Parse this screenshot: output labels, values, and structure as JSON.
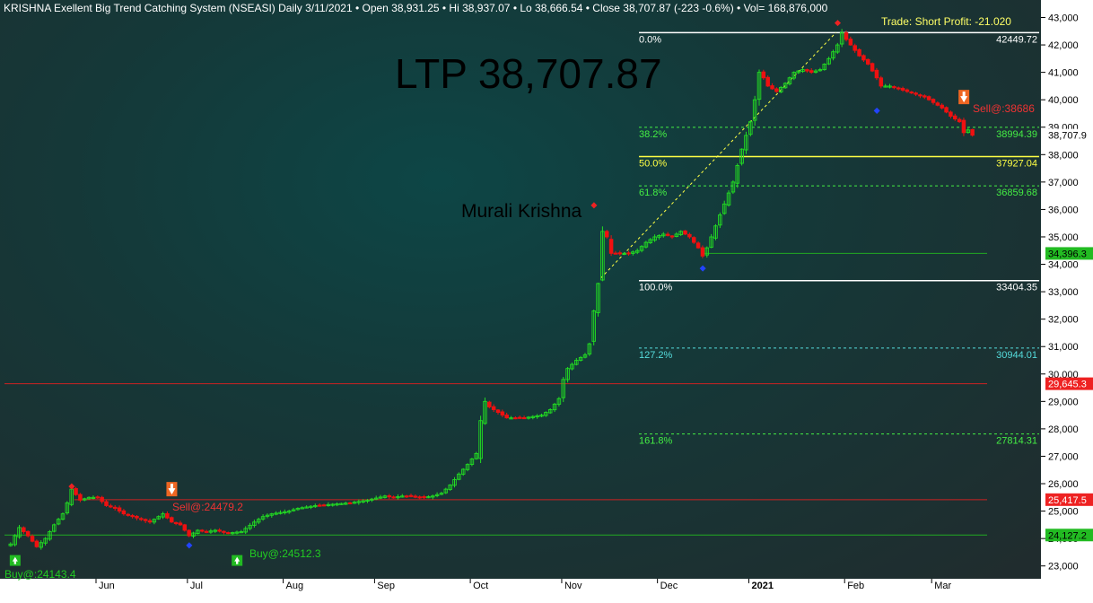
{
  "header": {
    "title": "KRISHNA Exellent Big Trend Catching System (NSEASI) Daily  3/11/2021  •  Open 38,931.25  •  Hi 38,937.07  •  Lo 38,666.54  •  Close 38,707.87 (-223 -0.6%)  •  Vol= 168,876,000"
  },
  "annotations": {
    "ltp": "LTP 38,707.87",
    "author": "Murali Krishna",
    "trade": "Trade: Short Profit: -21.020",
    "buy1": "Buy@:24143.4",
    "sell1": "Sell@:24479.2",
    "buy2": "Buy@:24512.3",
    "sell2": "Sell@:38686"
  },
  "colors": {
    "up": "#22dd22",
    "down": "#ee1111",
    "axis_bg": "#ffffff",
    "fib_main": "#ffffff",
    "fib_382": "#44ee44",
    "fib_50": "#ffff44",
    "fib_618": "#44ee44",
    "fib_1272": "#55dddd",
    "fib_1618": "#44ee44",
    "resist": "#cc2222",
    "support": "#22aa22"
  },
  "chart_data": {
    "type": "candlestick",
    "ylim": [
      22700,
      43300
    ],
    "y_ticks": [
      {
        "v": 23000,
        "label": "23,000"
      },
      {
        "v": 24000,
        "label": "24,000"
      },
      {
        "v": 25000,
        "label": "25,000"
      },
      {
        "v": 26000,
        "label": "26,000"
      },
      {
        "v": 27000,
        "label": "27,000"
      },
      {
        "v": 28000,
        "label": "28,000"
      },
      {
        "v": 29000,
        "label": "29,000"
      },
      {
        "v": 30000,
        "label": "30,000"
      },
      {
        "v": 31000,
        "label": "31,000"
      },
      {
        "v": 32000,
        "label": "32,000"
      },
      {
        "v": 33000,
        "label": "33,000"
      },
      {
        "v": 34000,
        "label": "34,000"
      },
      {
        "v": 35000,
        "label": "35,000"
      },
      {
        "v": 36000,
        "label": "36,000"
      },
      {
        "v": 37000,
        "label": "37,000"
      },
      {
        "v": 38000,
        "label": "38,000"
      },
      {
        "v": 39000,
        "label": "39,000"
      },
      {
        "v": 40000,
        "label": "40,000"
      },
      {
        "v": 41000,
        "label": "41,000"
      },
      {
        "v": 42000,
        "label": "42,000"
      },
      {
        "v": 43000,
        "label": "43,000"
      }
    ],
    "months": [
      {
        "label": "Jun",
        "bar": 20
      },
      {
        "label": "Jul",
        "bar": 41
      },
      {
        "label": "Aug",
        "bar": 63
      },
      {
        "label": "Sep",
        "bar": 84
      },
      {
        "label": "Oct",
        "bar": 106
      },
      {
        "label": "Nov",
        "bar": 127
      },
      {
        "label": "Dec",
        "bar": 149
      },
      {
        "label": "2021",
        "bar": 170,
        "bold": true
      },
      {
        "label": "Feb",
        "bar": 192
      },
      {
        "label": "Mar",
        "bar": 212
      }
    ],
    "price_tags": [
      {
        "v": 38707.87,
        "label": "38,707.9",
        "bg": "#ffffff",
        "fg": "#000000"
      },
      {
        "v": 34396.3,
        "label": "34,396.3",
        "bg": "#22bb22",
        "fg": "#000000"
      },
      {
        "v": 29645.3,
        "label": "29,645.3",
        "bg": "#ee2222",
        "fg": "#ffffff"
      },
      {
        "v": 25417.5,
        "label": "25,417.5",
        "bg": "#ee2222",
        "fg": "#ffffff"
      },
      {
        "v": 24127.2,
        "label": "24,127.2",
        "bg": "#22bb22",
        "fg": "#000000"
      }
    ],
    "fib_levels": [
      {
        "pct": "0.0%",
        "v": 42449.72,
        "value": "42449.72",
        "style": "solid",
        "color": "#ffffff",
        "lcolor": "#ffffff"
      },
      {
        "pct": "38.2%",
        "v": 38994.39,
        "value": "38994.39",
        "style": "dash",
        "color": "#44ee44",
        "lcolor": "#44ee44"
      },
      {
        "pct": "50.0%",
        "v": 37927.04,
        "value": "37927.04",
        "style": "solid",
        "color": "#ffff44",
        "lcolor": "#ffff44"
      },
      {
        "pct": "61.8%",
        "v": 36859.68,
        "value": "36859.68",
        "style": "dash",
        "color": "#44ee44",
        "lcolor": "#44ee44"
      },
      {
        "pct": "100.0%",
        "v": 33404.35,
        "value": "33404.35",
        "style": "solid",
        "color": "#ffffff",
        "lcolor": "#ffffff"
      },
      {
        "pct": "127.2%",
        "v": 30944.01,
        "value": "30944.01",
        "style": "dash",
        "color": "#55dddd",
        "lcolor": "#55dddd"
      },
      {
        "pct": "161.8%",
        "v": 27814.31,
        "value": "27814.31",
        "style": "dash",
        "color": "#44ee44",
        "lcolor": "#44ee44"
      }
    ],
    "hlines": [
      {
        "v": 29645.3,
        "color": "#cc2222",
        "x_from_bar": 0,
        "x_to_bar": 224
      },
      {
        "v": 25417.5,
        "color": "#cc2222",
        "x_from_bar": 15,
        "x_to_bar": 224
      },
      {
        "v": 24127.2,
        "color": "#22aa22",
        "x_from_bar": 0,
        "x_to_bar": 224
      },
      {
        "v": 34396.3,
        "color": "#22aa22",
        "x_from_bar": 159,
        "x_to_bar": 224
      }
    ],
    "close_anchors": [
      [
        0,
        23800
      ],
      [
        2,
        24400
      ],
      [
        4,
        24100
      ],
      [
        6,
        23700
      ],
      [
        8,
        24000
      ],
      [
        10,
        24500
      ],
      [
        12,
        24900
      ],
      [
        13,
        25300
      ],
      [
        14,
        25800
      ],
      [
        16,
        25400
      ],
      [
        18,
        25500
      ],
      [
        20,
        25500
      ],
      [
        22,
        25200
      ],
      [
        24,
        25100
      ],
      [
        26,
        24900
      ],
      [
        28,
        24800
      ],
      [
        30,
        24700
      ],
      [
        32,
        24600
      ],
      [
        35,
        24900
      ],
      [
        37,
        24600
      ],
      [
        39,
        24500
      ],
      [
        41,
        24100
      ],
      [
        43,
        24300
      ],
      [
        45,
        24250
      ],
      [
        47,
        24300
      ],
      [
        50,
        24200
      ],
      [
        53,
        24250
      ],
      [
        56,
        24600
      ],
      [
        58,
        24800
      ],
      [
        60,
        24900
      ],
      [
        62,
        24950
      ],
      [
        64,
        25000
      ],
      [
        66,
        25100
      ],
      [
        68,
        25150
      ],
      [
        70,
        25200
      ],
      [
        74,
        25250
      ],
      [
        78,
        25300
      ],
      [
        82,
        25400
      ],
      [
        86,
        25550
      ],
      [
        88,
        25500
      ],
      [
        90,
        25550
      ],
      [
        92,
        25550
      ],
      [
        95,
        25500
      ],
      [
        97,
        25550
      ],
      [
        99,
        25650
      ],
      [
        101,
        25950
      ],
      [
        103,
        26350
      ],
      [
        105,
        26700
      ],
      [
        107,
        27100
      ],
      [
        108,
        28300
      ],
      [
        109,
        29000
      ],
      [
        110,
        28800
      ],
      [
        112,
        28600
      ],
      [
        114,
        28400
      ],
      [
        116,
        28400
      ],
      [
        118,
        28400
      ],
      [
        120,
        28450
      ],
      [
        122,
        28500
      ],
      [
        124,
        28700
      ],
      [
        126,
        29100
      ],
      [
        127,
        29800
      ],
      [
        128,
        30200
      ],
      [
        130,
        30500
      ],
      [
        132,
        30700
      ],
      [
        133,
        31100
      ],
      [
        134,
        32300
      ],
      [
        135,
        33300
      ],
      [
        136,
        35200
      ],
      [
        137,
        35000
      ],
      [
        138,
        34400
      ],
      [
        140,
        34400
      ],
      [
        142,
        34400
      ],
      [
        144,
        34500
      ],
      [
        146,
        34800
      ],
      [
        148,
        35000
      ],
      [
        150,
        35100
      ],
      [
        152,
        35000
      ],
      [
        154,
        35200
      ],
      [
        156,
        35000
      ],
      [
        158,
        34600
      ],
      [
        159,
        34300
      ],
      [
        160,
        34600
      ],
      [
        162,
        35400
      ],
      [
        164,
        36200
      ],
      [
        166,
        37000
      ],
      [
        168,
        38200
      ],
      [
        170,
        39200
      ],
      [
        171,
        40000
      ],
      [
        172,
        41000
      ],
      [
        173,
        40800
      ],
      [
        174,
        40500
      ],
      [
        176,
        40300
      ],
      [
        178,
        40600
      ],
      [
        180,
        41000
      ],
      [
        182,
        41100
      ],
      [
        184,
        41000
      ],
      [
        186,
        41100
      ],
      [
        188,
        41500
      ],
      [
        190,
        42000
      ],
      [
        191,
        42450
      ],
      [
        192,
        42200
      ],
      [
        193,
        42000
      ],
      [
        195,
        41600
      ],
      [
        197,
        41300
      ],
      [
        199,
        40800
      ],
      [
        200,
        40500
      ],
      [
        202,
        40500
      ],
      [
        204,
        40400
      ],
      [
        206,
        40300
      ],
      [
        208,
        40200
      ],
      [
        210,
        40100
      ],
      [
        212,
        39900
      ],
      [
        214,
        39700
      ],
      [
        216,
        39400
      ],
      [
        218,
        39200
      ],
      [
        219,
        38800
      ],
      [
        220,
        38900
      ],
      [
        221,
        38707.87
      ]
    ],
    "markers": [
      {
        "bar": 1,
        "type": "buy",
        "v": 23200
      },
      {
        "bar": 14,
        "type": "red_dot",
        "v": 25900
      },
      {
        "bar": 37,
        "type": "sell",
        "v": 25800
      },
      {
        "bar": 41,
        "type": "blue_dot",
        "v": 23750
      },
      {
        "bar": 52,
        "type": "buy",
        "v": 23200
      },
      {
        "bar": 134,
        "type": "red_dot",
        "v": 36150
      },
      {
        "bar": 159,
        "type": "blue_dot",
        "v": 33850
      },
      {
        "bar": 190,
        "type": "red_dot",
        "v": 42800
      },
      {
        "bar": 199,
        "type": "blue_dot",
        "v": 39600
      },
      {
        "bar": 219,
        "type": "sell",
        "v": 40100
      }
    ],
    "trendline": [
      {
        "bar": 136,
        "v": 33500
      },
      {
        "bar": 190,
        "v": 42450
      }
    ]
  }
}
